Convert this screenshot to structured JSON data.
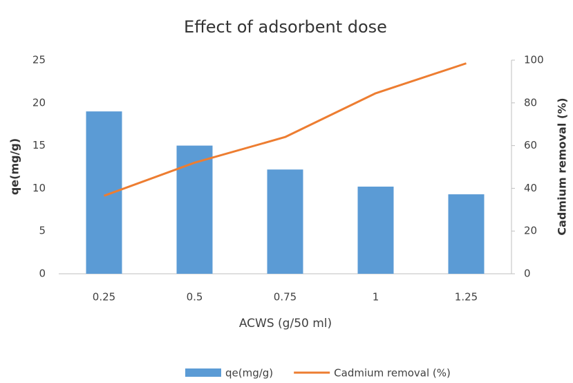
{
  "chart_data": {
    "type": "bar",
    "title": "Effect of adsorbent dose",
    "x_label": "ACWS  (g/50 ml)",
    "y_label": "qe(mg/g)",
    "y2_label": "Cadmium removal (%)",
    "categories": [
      "0.25",
      "0.5",
      "0.75",
      "1",
      "1.25"
    ],
    "series": [
      {
        "name": "qe(mg/g)",
        "type": "bar",
        "color": "#5b9bd5",
        "values": [
          19.0,
          15.0,
          12.2,
          10.2,
          9.3
        ]
      },
      {
        "name": "Cadmium removal (%)",
        "type": "line",
        "axis": "y2",
        "color": "#ed7d31",
        "values": [
          36.5,
          52,
          64,
          84.5,
          98.5
        ]
      }
    ],
    "ylim": [
      0,
      25
    ],
    "yticks": [
      0,
      5,
      10,
      15,
      20,
      25
    ],
    "y2lim": [
      0,
      100
    ],
    "y2ticks": [
      0,
      20,
      40,
      60,
      80,
      100
    ],
    "grid": false,
    "legend": "bottom"
  }
}
